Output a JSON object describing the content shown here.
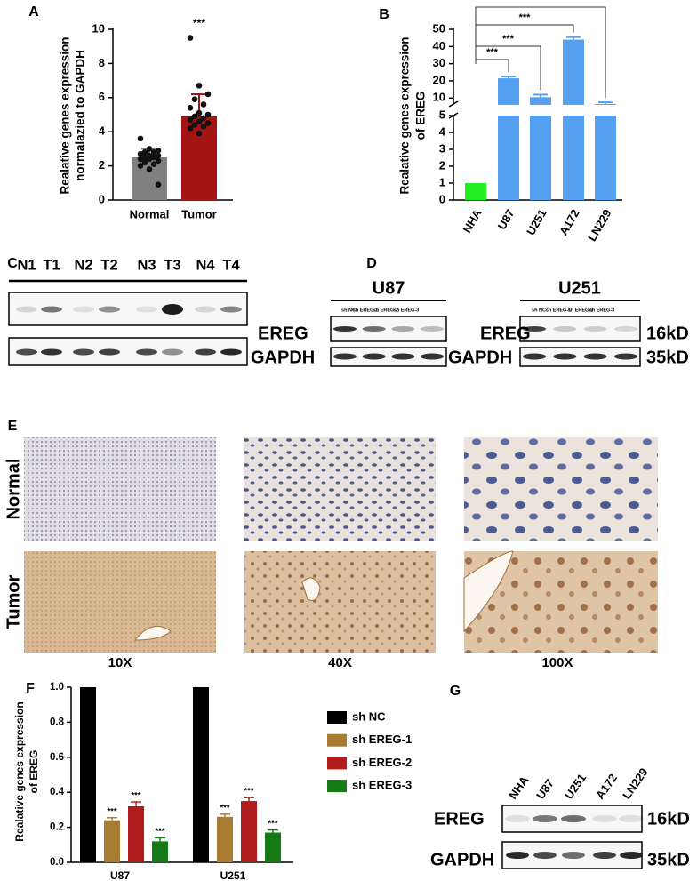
{
  "chart_data": [
    {
      "type": "bar",
      "panel": "A",
      "ylabel": [
        "Realative genes expression",
        "normalazied to GAPDH"
      ],
      "categories": [
        "Normal",
        "Tumor"
      ],
      "values": [
        2.5,
        4.9
      ],
      "errors": [
        0.5,
        1.3
      ],
      "colors": [
        "#808080",
        "#a31515"
      ],
      "points": [
        [
          3.6,
          3.0,
          2.9,
          2.8,
          2.8,
          2.7,
          2.6,
          2.6,
          2.5,
          2.5,
          2.4,
          2.4,
          2.3,
          2.2,
          2.1,
          2.0,
          1.8,
          0.9
        ],
        [
          9.5,
          6.7,
          6.2,
          5.9,
          5.6,
          5.4,
          5.1,
          5.0,
          4.9,
          4.8,
          4.7,
          4.6,
          4.5,
          4.4,
          4.3,
          4.2,
          3.9
        ]
      ],
      "significance": [
        null,
        "***"
      ],
      "ylim": [
        0,
        10
      ],
      "yticks": [
        0,
        2,
        4,
        6,
        8,
        10
      ]
    },
    {
      "type": "broken-bar",
      "panel": "B",
      "ylabel": [
        "Realative genes expression",
        "of EREG"
      ],
      "categories": [
        "NHA",
        "U87",
        "U251",
        "A172",
        "LN229"
      ],
      "values": [
        1,
        21.5,
        10.5,
        44,
        6.5
      ],
      "errors": [
        0,
        1,
        1.5,
        1.5,
        1
      ],
      "colors": [
        "#22ee22",
        "#55a0f0",
        "#55a0f0",
        "#55a0f0",
        "#55a0f0"
      ],
      "significance": [
        null,
        "***",
        "***",
        "***",
        "***"
      ],
      "ylim_lower": [
        0,
        5
      ],
      "yticks_lower": [
        0,
        1,
        2,
        3,
        4,
        5
      ],
      "ylim_upper": [
        6,
        50
      ],
      "yticks_upper": [
        10,
        20,
        30,
        40,
        50
      ]
    },
    {
      "type": "grouped-bar",
      "panel": "F",
      "ylabel": [
        "Realative genes expression",
        "of EREG"
      ],
      "categories": [
        "U87",
        "U251"
      ],
      "series": [
        {
          "name": "sh NC",
          "color": "#000000",
          "values": [
            1,
            1
          ],
          "errors": [
            0,
            0
          ]
        },
        {
          "name": "sh EREG-1",
          "color": "#a87c32",
          "values": [
            0.24,
            0.26
          ],
          "errors": [
            0.015,
            0.015
          ],
          "significance": [
            "***",
            "***"
          ]
        },
        {
          "name": "sh EREG-2",
          "color": "#b01c1c",
          "values": [
            0.32,
            0.35
          ],
          "errors": [
            0.025,
            0.02
          ],
          "significance": [
            "***",
            "***"
          ]
        },
        {
          "name": "sh EREG-3",
          "color": "#167a16",
          "values": [
            0.12,
            0.17
          ],
          "errors": [
            0.02,
            0.015
          ],
          "significance": [
            "***",
            "***"
          ]
        }
      ],
      "ylim": [
        0,
        1
      ],
      "yticks": [
        {
          "value": 0,
          "label": "0.0"
        },
        0.2,
        0.4,
        0.6,
        0.8,
        {
          "value": 1,
          "label": "1.0"
        }
      ]
    }
  ],
  "blots": {
    "C": {
      "panel": "C",
      "lanes": [
        "N1",
        "T1",
        "N2",
        "T2",
        "N3",
        "T3",
        "N4",
        "T4"
      ],
      "rows": [
        "EREG",
        "GAPDH"
      ]
    },
    "D": {
      "panel": "D",
      "groups": [
        {
          "name": "U87",
          "lanes": [
            "sh NC",
            "sh EREG-1",
            "sh EREG-2",
            "sh EREG-3"
          ]
        },
        {
          "name": "U251",
          "lanes": [
            "sh NC",
            "sh EREG-1",
            "sh EREG-2",
            "sh EREG-3"
          ]
        }
      ],
      "rows": [
        "EREG",
        "GAPDH"
      ],
      "sizes": [
        "16kD",
        "35kD"
      ]
    },
    "G": {
      "panel": "G",
      "lanes": [
        "NHA",
        "U87",
        "U251",
        "A172",
        "LN229"
      ],
      "rows": [
        "EREG",
        "GAPDH"
      ],
      "sizes": [
        "16kD",
        "35kD"
      ]
    }
  },
  "ihc": {
    "panel": "E",
    "rows": [
      "Normal",
      "Tumor"
    ],
    "magnifications": [
      "10X",
      "40X",
      "100X"
    ]
  }
}
